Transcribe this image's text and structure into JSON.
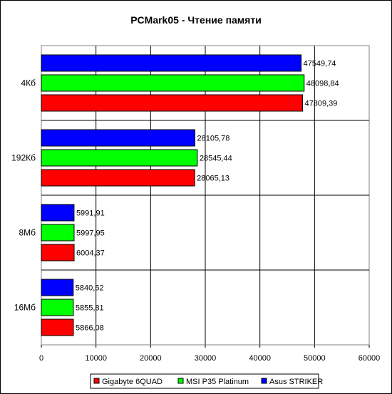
{
  "chart_data": {
    "type": "bar",
    "orientation": "horizontal",
    "title": "PCMark05 - Чтение памяти",
    "xlabel": "",
    "ylabel": "",
    "categories": [
      "4Кб",
      "192Кб",
      "8Мб",
      "16Мб"
    ],
    "series": [
      {
        "name": "Asus STRIKER",
        "color": "#0000ff",
        "values": [
          47549.74,
          28105.78,
          5991.91,
          5840.52
        ],
        "labels": [
          "47549,74",
          "28105,78",
          "5991,91",
          "5840,52"
        ]
      },
      {
        "name": "MSI P35 Platinum",
        "color": "#00ff00",
        "values": [
          48098.84,
          28545.44,
          5997.95,
          5855.81
        ],
        "labels": [
          "48098,84",
          "28545,44",
          "5997,95",
          "5855,81"
        ]
      },
      {
        "name": "Gigabyte 6QUAD",
        "color": "#ff0000",
        "values": [
          47809.39,
          28065.13,
          6004.37,
          5866.08
        ],
        "labels": [
          "47809,39",
          "28065,13",
          "6004,37",
          "5866,08"
        ]
      }
    ],
    "legend_order": [
      "Gigabyte 6QUAD",
      "MSI P35 Platinum",
      "Asus STRIKER"
    ],
    "xlim": [
      0,
      60000
    ],
    "xticks": [
      0,
      10000,
      20000,
      30000,
      40000,
      50000,
      60000
    ],
    "grid": "vertical",
    "legend_position": "bottom"
  }
}
